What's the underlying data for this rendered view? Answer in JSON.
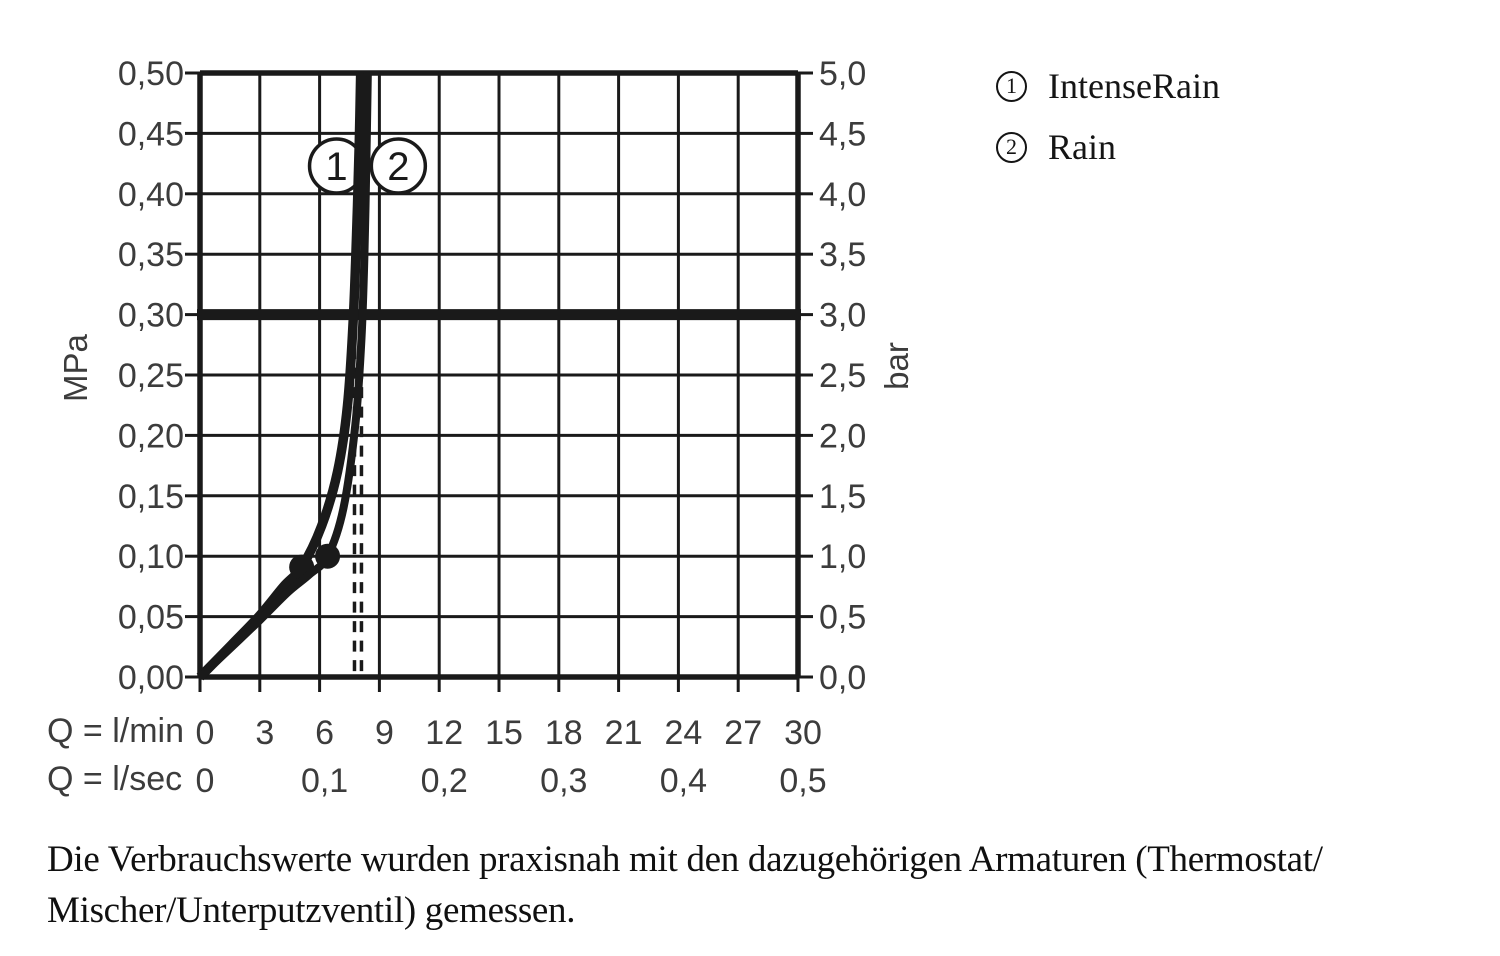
{
  "page": {
    "background": "#ffffff"
  },
  "axis_units": {
    "left": "MPa",
    "right": "bar",
    "flow_min": "Q = l/min",
    "flow_sec": "Q = l/sec"
  },
  "legend": {
    "items": [
      {
        "number": "1",
        "label": "IntenseRain"
      },
      {
        "number": "2",
        "label": "Rain"
      }
    ]
  },
  "footer": {
    "line1": "Die Verbrauchswerte wurden praxisnah mit den dazugehörigen Armaturen (Thermostat/",
    "line2": "Mischer/Unterputzventil) gemessen."
  },
  "chart_data": {
    "type": "line",
    "title": "",
    "grid": true,
    "legend_position": "top-right",
    "x_axis": {
      "range_lmin": [
        0,
        30
      ],
      "lmin_tick_labels": [
        "0",
        "3",
        "6",
        "9",
        "12",
        "15",
        "18",
        "21",
        "24",
        "27",
        "30"
      ],
      "lmin_tick_values": [
        0,
        3,
        6,
        9,
        12,
        15,
        18,
        21,
        24,
        27,
        30
      ],
      "lsec_ticks": [
        {
          "label": "0",
          "q_lmin": 0
        },
        {
          "label": "0,1",
          "q_lmin": 6
        },
        {
          "label": "0,2",
          "q_lmin": 12
        },
        {
          "label": "0,3",
          "q_lmin": 18
        },
        {
          "label": "0,4",
          "q_lmin": 24
        },
        {
          "label": "0,5",
          "q_lmin": 30
        }
      ]
    },
    "y_axis_left": {
      "unit": "MPa",
      "range": [
        0,
        0.5
      ],
      "tick_step": 0.05,
      "tick_labels_top_to_bottom": [
        "0,50",
        "0,45",
        "0,40",
        "0,35",
        "0,30",
        "0,25",
        "0,20",
        "0,15",
        "0,10",
        "0,05",
        "0,00"
      ]
    },
    "y_axis_right": {
      "unit": "bar",
      "range": [
        0,
        5.0
      ],
      "tick_step": 0.5,
      "tick_labels_top_to_bottom": [
        "5,0",
        "4,5",
        "4,0",
        "3,5",
        "3,0",
        "2,5",
        "2,0",
        "1,5",
        "1,0",
        "0,5",
        "0,0"
      ]
    },
    "reference_line": {
      "mpa": 0.3,
      "bar": 3.0
    },
    "guides_lmin": [
      7.75,
      8.1
    ],
    "series": [
      {
        "name": "IntenseRain",
        "callout_number": "1",
        "points_lmin_mpa": [
          [
            0,
            0
          ],
          [
            1.6,
            0.027
          ],
          [
            3.0,
            0.051
          ],
          [
            4.2,
            0.075
          ],
          [
            5.1,
            0.091
          ],
          [
            6.1,
            0.125
          ],
          [
            6.9,
            0.17
          ],
          [
            7.4,
            0.225
          ],
          [
            7.7,
            0.3
          ],
          [
            7.9,
            0.39
          ],
          [
            8.0,
            0.45
          ],
          [
            8.06,
            0.5
          ]
        ],
        "marker_lmin_mpa": [
          5.1,
          0.091
        ],
        "flow_at_3_bar_lmin": 7.75
      },
      {
        "name": "Rain",
        "callout_number": "2",
        "points_lmin_mpa": [
          [
            0,
            0
          ],
          [
            1.6,
            0.025
          ],
          [
            3.0,
            0.047
          ],
          [
            4.4,
            0.07
          ],
          [
            5.5,
            0.085
          ],
          [
            6.4,
            0.1
          ],
          [
            7.2,
            0.14
          ],
          [
            7.8,
            0.21
          ],
          [
            8.1,
            0.28
          ],
          [
            8.25,
            0.35
          ],
          [
            8.35,
            0.43
          ],
          [
            8.42,
            0.5
          ]
        ],
        "marker_lmin_mpa": [
          6.4,
          0.1
        ],
        "flow_at_3_bar_lmin": 8.1
      }
    ],
    "annotations": [
      {
        "text": "1",
        "q_lmin": 6.85,
        "mpa": 0.423
      },
      {
        "text": "2",
        "q_lmin": 9.95,
        "mpa": 0.423
      }
    ],
    "colors": {
      "ink": "#1a1a1a",
      "tick_label": "#3c3c3c",
      "background": "#ffffff"
    }
  }
}
